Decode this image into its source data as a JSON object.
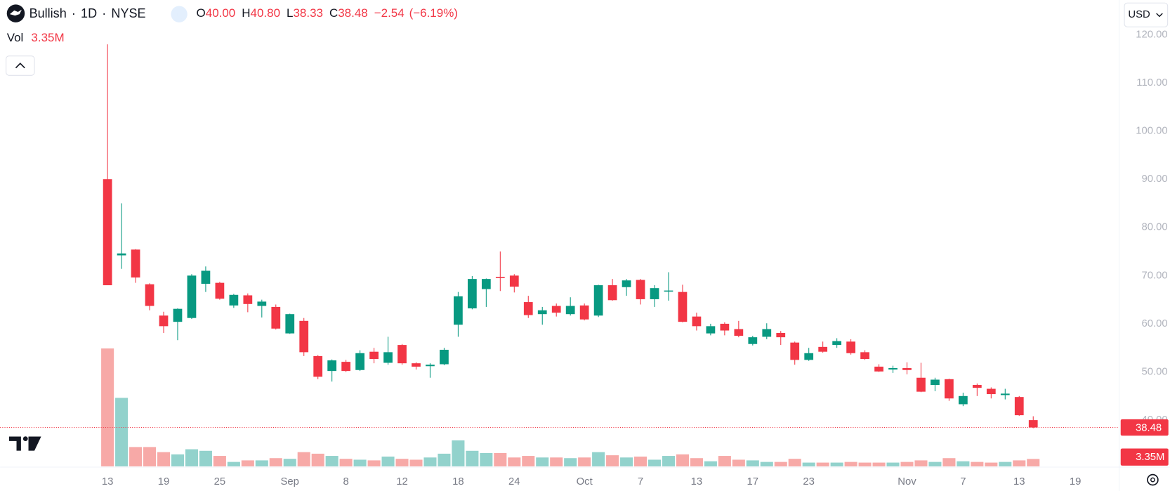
{
  "header": {
    "symbol": "Bullish",
    "sep": "·",
    "interval": "1D",
    "exchange": "NYSE",
    "o_key": "O",
    "o": "40.00",
    "h_key": "H",
    "h": "40.80",
    "l_key": "L",
    "l": "38.33",
    "c_key": "C",
    "c": "38.48",
    "change": "−2.54",
    "change_pct": "(−6.19%)",
    "currency": "USD"
  },
  "chart_data": {
    "type": "candlestick",
    "categories": [
      "13",
      null,
      null,
      null,
      "19",
      null,
      null,
      null,
      "25",
      null,
      null,
      null,
      null,
      "Sep",
      null,
      null,
      null,
      "8",
      null,
      null,
      null,
      "12",
      null,
      null,
      null,
      "18",
      null,
      null,
      null,
      "24",
      null,
      null,
      null,
      null,
      "Oct",
      null,
      null,
      null,
      "7",
      null,
      null,
      null,
      "13",
      null,
      null,
      null,
      "17",
      null,
      null,
      null,
      "23",
      null,
      null,
      null,
      null,
      null,
      null,
      "Nov",
      null,
      null,
      null,
      "7",
      null,
      null,
      null,
      "13",
      null,
      null,
      null,
      "19"
    ],
    "open": [
      90,
      74.2,
      75.4,
      68.2,
      61.7,
      60.4,
      61.2,
      68.3,
      68.5,
      63.8,
      65.9,
      63.7,
      63.5,
      58.0,
      60.6,
      53.3,
      50.2,
      52.1,
      50.4,
      54.2,
      51.9,
      55.6,
      51.8,
      51.2,
      51.6,
      59.8,
      63.2,
      67.2,
      69.7,
      70.0,
      64.5,
      62.0,
      63.7,
      62.0,
      63.8,
      61.7,
      68.0,
      67.6,
      69.1,
      65.1,
      66.7,
      66.6,
      61.5,
      58.0,
      60.0,
      58.9,
      55.8,
      57.3,
      58.1,
      56.1,
      52.5,
      55.2,
      55.6,
      56.3,
      54.1,
      51.1,
      50.5,
      50.8,
      48.8,
      47.3,
      48.5,
      43.3,
      47.3,
      46.5,
      45.2,
      44.8,
      40.0,
      null,
      null,
      null
    ],
    "high": [
      118,
      85,
      75.5,
      68.4,
      62.5,
      63.2,
      70.3,
      71.9,
      68.7,
      66.2,
      66.3,
      65.0,
      64.0,
      62.1,
      61.2,
      53.5,
      52.6,
      52.5,
      54.5,
      55.0,
      57.3,
      55.8,
      52.0,
      51.8,
      55.0,
      66.6,
      69.9,
      69.4,
      75.0,
      70.3,
      65.8,
      63.5,
      64.2,
      65.5,
      64.2,
      68.1,
      69.3,
      69.3,
      69.3,
      68.0,
      70.7,
      68.1,
      62.3,
      60.0,
      60.3,
      60.6,
      57.5,
      60.1,
      58.5,
      56.3,
      55.0,
      56.3,
      57.0,
      56.8,
      54.5,
      51.6,
      51.3,
      52.0,
      51.9,
      48.8,
      48.6,
      45.7,
      47.6,
      46.8,
      46.5,
      45.0,
      40.8,
      null,
      null,
      null
    ],
    "low": [
      68,
      71.4,
      68.5,
      62.8,
      58.1,
      56.6,
      61.0,
      66.6,
      65.0,
      63.3,
      62.4,
      61.3,
      58.8,
      57.9,
      53.3,
      48.5,
      48.0,
      50.0,
      50.2,
      51.8,
      51.5,
      51.5,
      50.5,
      48.8,
      51.4,
      57.3,
      63.0,
      63.5,
      66.8,
      66.5,
      61.2,
      59.8,
      61.5,
      61.7,
      60.7,
      61.4,
      64.8,
      65.8,
      64.0,
      63.5,
      64.8,
      60.3,
      58.6,
      57.6,
      57.6,
      57.2,
      55.5,
      56.8,
      55.6,
      51.5,
      52.3,
      54.0,
      55.0,
      53.6,
      52.5,
      50.0,
      49.8,
      49.5,
      45.8,
      46.0,
      44.0,
      42.9,
      45.0,
      44.5,
      44.3,
      40.9,
      38.33,
      null,
      null,
      null
    ],
    "close": [
      68,
      74.6,
      69.6,
      63.7,
      59.5,
      63.1,
      70.0,
      71.0,
      65.2,
      66.0,
      64.1,
      64.6,
      59.0,
      62.0,
      54.1,
      49.0,
      52.4,
      50.2,
      53.9,
      52.7,
      54.1,
      51.8,
      51.1,
      51.5,
      54.6,
      65.7,
      69.3,
      69.3,
      69.5,
      67.7,
      61.8,
      62.8,
      62.3,
      63.7,
      60.9,
      68.0,
      64.9,
      69.0,
      65.1,
      67.4,
      66.9,
      60.4,
      59.5,
      59.5,
      58.6,
      57.5,
      57.2,
      58.9,
      57.2,
      52.5,
      53.9,
      54.2,
      56.4,
      53.9,
      52.7,
      50.1,
      50.8,
      50.4,
      45.9,
      48.4,
      44.5,
      45.0,
      46.7,
      45.4,
      45.5,
      41.02,
      38.48,
      null,
      null,
      null
    ],
    "up_color": "#089981",
    "down_color": "#f23645",
    "last_price_label": "38.48",
    "volume": {
      "name": "Vol",
      "last_label": "3.35M",
      "up_color": "#92d2cc",
      "down_color": "#f7a9a7",
      "values": [
        53.0,
        30.8,
        8.7,
        8.7,
        6.4,
        5.4,
        7.7,
        7.0,
        4.7,
        2.0,
        2.7,
        2.7,
        3.7,
        3.4,
        6.4,
        5.7,
        4.7,
        3.4,
        3.0,
        2.7,
        4.4,
        3.4,
        3.0,
        4.0,
        5.7,
        11.7,
        7.0,
        6.0,
        6.0,
        4.0,
        4.7,
        4.0,
        4.0,
        3.7,
        4.0,
        6.4,
        5.0,
        4.0,
        4.4,
        3.0,
        4.7,
        5.4,
        3.7,
        2.3,
        4.7,
        3.0,
        2.7,
        2.0,
        2.0,
        3.4,
        1.7,
        1.7,
        1.7,
        2.0,
        1.7,
        1.7,
        1.7,
        2.0,
        2.7,
        2.0,
        3.7,
        2.3,
        2.0,
        1.7,
        2.0,
        2.7,
        3.35,
        null,
        null,
        null
      ]
    },
    "ylim": [
      30.4,
      127.2
    ],
    "yticks": [
      {
        "value": 40,
        "label": "40.00"
      },
      {
        "value": 50,
        "label": "50.00"
      },
      {
        "value": 60,
        "label": "60.00"
      },
      {
        "value": 70,
        "label": "70.00"
      },
      {
        "value": 80,
        "label": "80.00"
      },
      {
        "value": 90,
        "label": "90.00"
      },
      {
        "value": 100,
        "label": "100.00"
      },
      {
        "value": 110,
        "label": "110.00"
      },
      {
        "value": 120,
        "label": "120.00"
      }
    ]
  }
}
